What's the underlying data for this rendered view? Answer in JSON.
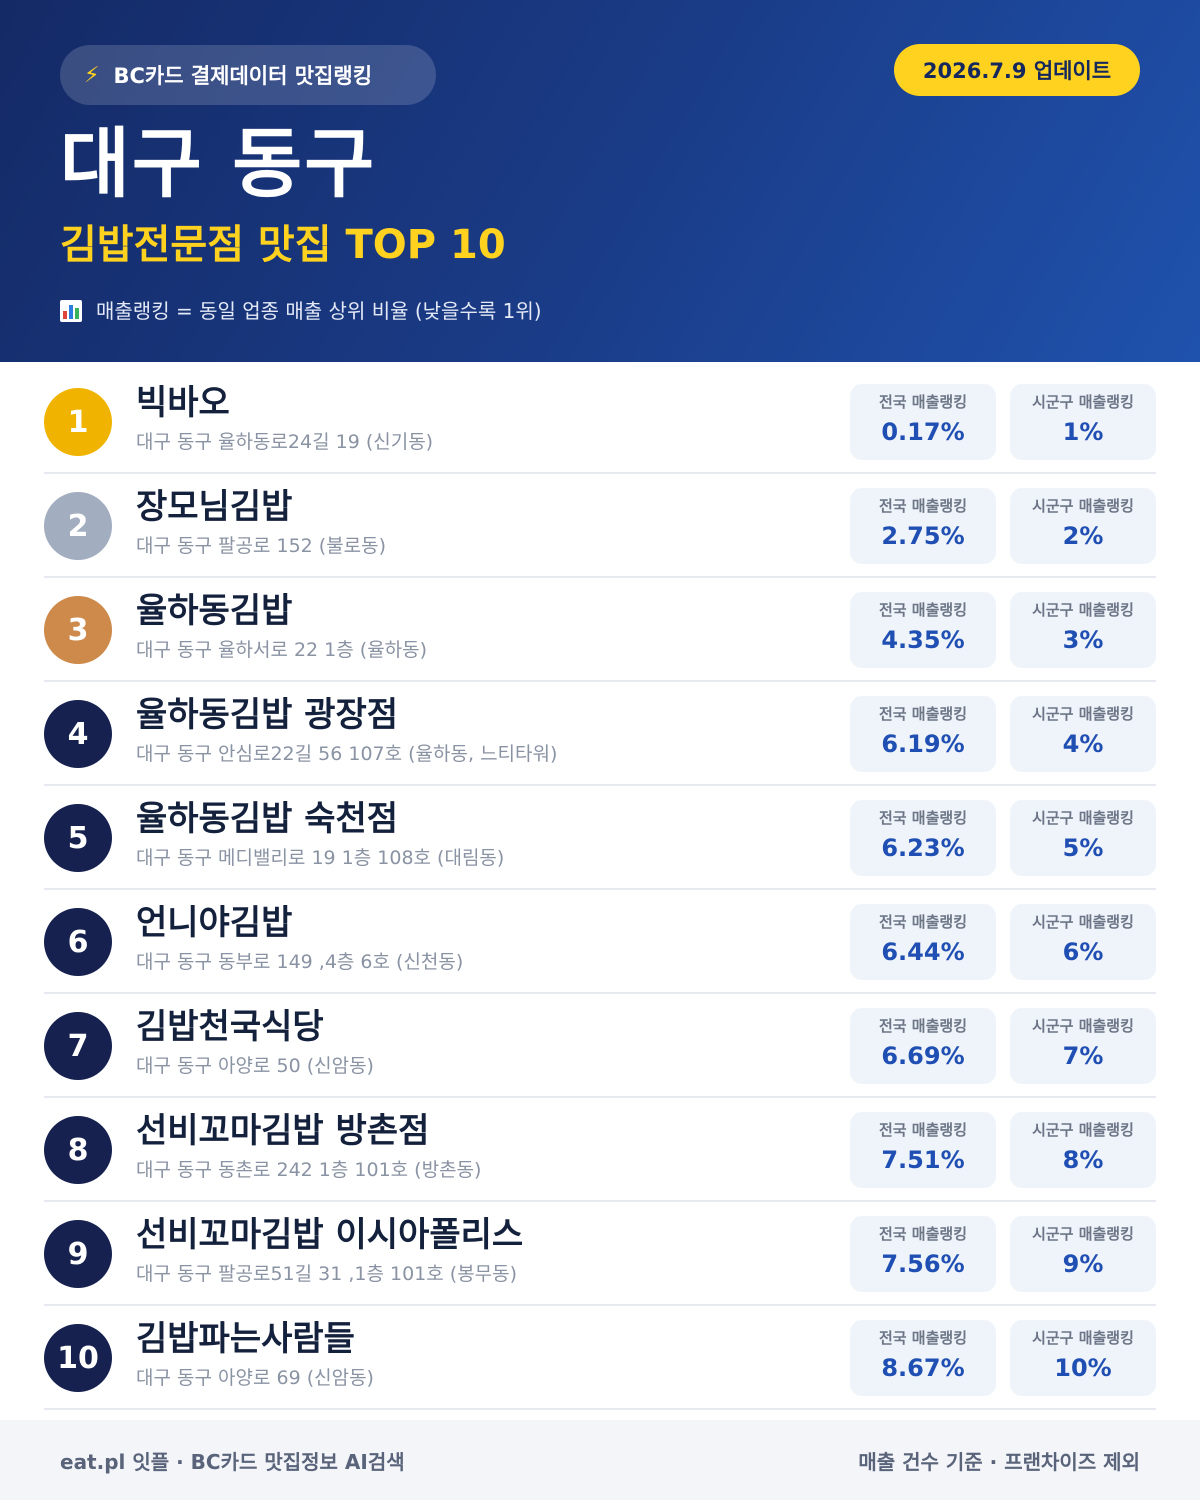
{
  "header": {
    "badge_icon": "lightning-icon",
    "badge_text": "BC카드 결제데이터 맛집랭킹",
    "update_text": "2026.7.9 업데이트",
    "title": "대구 동구",
    "subtitle": "김밥전문점 맛집 TOP 10",
    "note_icon": "bar-chart-icon",
    "note": "매출랭킹 = 동일 업종 매출 상위 비율 (낮을수록 1위)"
  },
  "colors": {
    "header_dark": "#142a66",
    "header_light": "#1f52ad",
    "accent_yellow": "#ffd21f",
    "gold": "#f0b400",
    "silver": "#a3adc0",
    "bronze": "#cd8a4b",
    "navy": "#16214f",
    "value_blue": "#1f4fb3"
  },
  "stat_labels": {
    "national": "전국 매출랭킹",
    "local": "시군구 매출랭킹"
  },
  "restaurants": [
    {
      "rank": "1",
      "name": "빅바오",
      "address": "대구 동구 율하동로24길 19 (신기동)",
      "national": "0.17%",
      "local": "1%"
    },
    {
      "rank": "2",
      "name": "장모님김밥",
      "address": "대구 동구 팔공로 152 (불로동)",
      "national": "2.75%",
      "local": "2%"
    },
    {
      "rank": "3",
      "name": "율하동김밥",
      "address": "대구 동구 율하서로 22 1층 (율하동)",
      "national": "4.35%",
      "local": "3%"
    },
    {
      "rank": "4",
      "name": "율하동김밥 광장점",
      "address": "대구 동구 안심로22길 56 107호 (율하동, 느티타워)",
      "national": "6.19%",
      "local": "4%"
    },
    {
      "rank": "5",
      "name": "율하동김밥 숙천점",
      "address": "대구 동구 메디밸리로 19 1층 108호 (대림동)",
      "national": "6.23%",
      "local": "5%"
    },
    {
      "rank": "6",
      "name": "언니야김밥",
      "address": "대구 동구 동부로 149 ,4층 6호 (신천동)",
      "national": "6.44%",
      "local": "6%"
    },
    {
      "rank": "7",
      "name": "김밥천국식당",
      "address": "대구 동구 아양로 50 (신암동)",
      "national": "6.69%",
      "local": "7%"
    },
    {
      "rank": "8",
      "name": "선비꼬마김밥 방촌점",
      "address": "대구 동구 동촌로 242 1층 101호 (방촌동)",
      "national": "7.51%",
      "local": "8%"
    },
    {
      "rank": "9",
      "name": "선비꼬마김밥 이시아폴리스",
      "address": "대구 동구 팔공로51길 31 ,1층 101호 (봉무동)",
      "national": "7.56%",
      "local": "9%"
    },
    {
      "rank": "10",
      "name": "김밥파는사람들",
      "address": "대구 동구 아양로 69 (신암동)",
      "national": "8.67%",
      "local": "10%"
    }
  ],
  "footer": {
    "left": "eat.pl 잇플 · BC카드 맛집정보 AI검색",
    "right": "매출 건수 기준 · 프랜차이즈 제외"
  }
}
